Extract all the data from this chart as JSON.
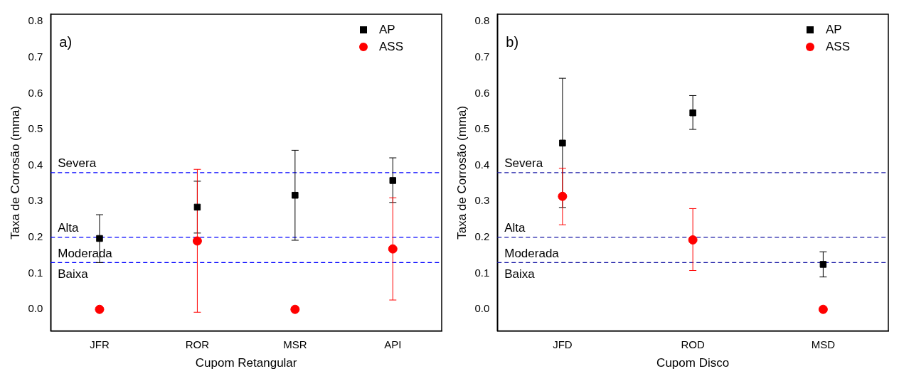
{
  "chart_data": [
    {
      "type": "scatter",
      "xlabel": "Cupom Retangular",
      "ylabel": "Taxa de Corrosão (mma)",
      "categories": [
        "JFR",
        "ROR",
        "MSR",
        "API"
      ],
      "ylim": [
        -0.06,
        0.82
      ],
      "yticks": [
        {
          "value": 0,
          "label": "0.0"
        },
        {
          "value": 0.1,
          "label": "0.1"
        },
        {
          "value": 0.2,
          "label": "0.2"
        },
        {
          "value": 0.3,
          "label": "0.3"
        },
        {
          "value": 0.4,
          "label": "0.4"
        },
        {
          "value": 0.5,
          "label": "0.5"
        },
        {
          "value": 0.6,
          "label": "0.6"
        },
        {
          "value": 0.7,
          "label": "0.7"
        },
        {
          "value": 0.8,
          "label": "0.8"
        }
      ],
      "series": [
        {
          "name": "AP",
          "color": "#000000",
          "marker": "square",
          "values": [
            0.197,
            0.284,
            0.317,
            0.358
          ],
          "errors": [
            [
              0.13,
              0.263
            ],
            [
              0.212,
              0.356
            ],
            [
              0.192,
              0.442
            ],
            [
              0.297,
              0.421
            ]
          ]
        },
        {
          "name": "ASS",
          "color": "#ff0000",
          "marker": "circle",
          "values": [
            0,
            0.19,
            0,
            0.168
          ],
          "errors": [
            null,
            [
              -0.008,
              0.389
            ],
            null,
            [
              0.026,
              0.31
            ]
          ]
        }
      ],
      "ref_lines": [
        {
          "axis": "y",
          "value": 0.38,
          "label": "Severa",
          "color": "#0000ff",
          "line_style": "dashed"
        },
        {
          "axis": "y",
          "value": 0.2,
          "label": "Alta",
          "color": "#0000ff",
          "line_style": "dashed"
        },
        {
          "axis": "y",
          "value": 0.13,
          "label": "Moderada",
          "color": "#0000ff",
          "line_style": "dashed"
        }
      ],
      "annotations": [
        "a)",
        "Baixa"
      ],
      "legend": "top right",
      "grid": false
    },
    {
      "type": "scatter",
      "xlabel": "Cupom Disco",
      "ylabel": "Taxa de Corrosão (mma)",
      "categories": [
        "JFD",
        "ROD",
        "MSD"
      ],
      "ylim": [
        -0.06,
        0.82
      ],
      "yticks": [
        {
          "value": 0,
          "label": "0.0"
        },
        {
          "value": 0.1,
          "label": "0.1"
        },
        {
          "value": 0.2,
          "label": "0.2"
        },
        {
          "value": 0.3,
          "label": "0.3"
        },
        {
          "value": 0.4,
          "label": "0.4"
        },
        {
          "value": 0.5,
          "label": "0.5"
        },
        {
          "value": 0.6,
          "label": "0.6"
        },
        {
          "value": 0.7,
          "label": "0.7"
        },
        {
          "value": 0.8,
          "label": "0.8"
        }
      ],
      "series": [
        {
          "name": "AP",
          "color": "#000000",
          "marker": "square",
          "values": [
            0.462,
            0.546,
            0.125
          ],
          "errors": [
            [
              0.283,
              0.642
            ],
            [
              0.5,
              0.594
            ],
            [
              0.09,
              0.16
            ]
          ]
        },
        {
          "name": "ASS",
          "color": "#ff0000",
          "marker": "circle",
          "values": [
            0.314,
            0.193,
            0
          ],
          "errors": [
            [
              0.235,
              0.392
            ],
            [
              0.108,
              0.28
            ],
            null
          ]
        }
      ],
      "ref_lines": [
        {
          "axis": "y",
          "value": 0.38,
          "label": "Severa",
          "color": "#1a1aa6",
          "line_style": "dashed"
        },
        {
          "axis": "y",
          "value": 0.2,
          "label": "Alta",
          "color": "#1a1aa6",
          "line_style": "dashed"
        },
        {
          "axis": "y",
          "value": 0.13,
          "label": "Moderada",
          "color": "#1a1aa6",
          "line_style": "dashed"
        }
      ],
      "annotations": [
        "b)",
        "Baixa"
      ],
      "legend": "top right",
      "grid": false
    }
  ]
}
